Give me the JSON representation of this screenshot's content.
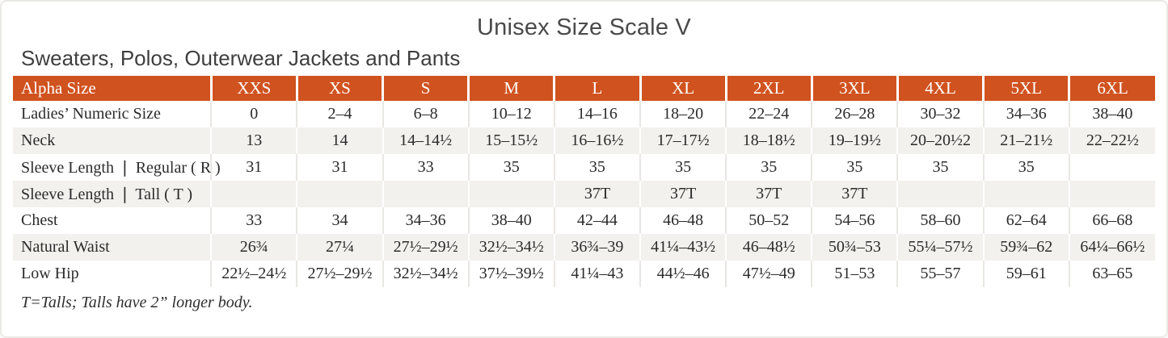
{
  "title": "Unisex Size Scale V",
  "subtitle": "Sweaters, Polos, Outerwear Jackets and Pants",
  "footnote": "T=Talls; Talls have 2” longer body.",
  "colors": {
    "header_bg": "#d0521f",
    "header_text": "#ffffff",
    "row_alt_bg": "#f2f1ee",
    "body_text": "#2b2b2b"
  },
  "table": {
    "header": [
      "Alpha Size",
      "XXS",
      "XS",
      "S",
      "M",
      "L",
      "XL",
      "2XL",
      "3XL",
      "4XL",
      "5XL",
      "6XL"
    ],
    "rows": [
      {
        "label": "Ladies’ Numeric Size",
        "values": [
          "0",
          "2–4",
          "6–8",
          "10–12",
          "14–16",
          "18–20",
          "22–24",
          "26–28",
          "30–32",
          "34–36",
          "38–40"
        ]
      },
      {
        "label": "Neck",
        "values": [
          "13",
          "14",
          "14–14½",
          "15–15½",
          "16–16½",
          "17–17½",
          "18–18½",
          "19–19½",
          "20–20½2",
          "21–21½",
          "22–22½"
        ]
      },
      {
        "label": "Sleeve Length ❘ Regular ( R )",
        "values": [
          "31",
          "31",
          "33",
          "35",
          "35",
          "35",
          "35",
          "35",
          "35",
          "35",
          ""
        ]
      },
      {
        "label": "Sleeve Length ❘ Tall ( T )",
        "values": [
          "",
          "",
          "",
          "",
          "37T",
          "37T",
          "37T",
          "37T",
          "",
          "",
          ""
        ]
      },
      {
        "label": "Chest",
        "values": [
          "33",
          "34",
          "34–36",
          "38–40",
          "42–44",
          "46–48",
          "50–52",
          "54–56",
          "58–60",
          "62–64",
          "66–68"
        ]
      },
      {
        "label": "Natural Waist",
        "values": [
          "26¾",
          "27¼",
          "27½–29½",
          "32½–34½",
          "36¾–39",
          "41¼–43½",
          "46–48½",
          "50¾–53",
          "55¼–57½",
          "59¾–62",
          "64¼–66½"
        ]
      },
      {
        "label": "Low Hip",
        "values": [
          "22½–24½",
          "27½–29½",
          "32½–34½",
          "37½–39½",
          "41¼–43",
          "44½–46",
          "47½–49",
          "51–53",
          "55–57",
          "59–61",
          "63–65"
        ]
      }
    ]
  }
}
